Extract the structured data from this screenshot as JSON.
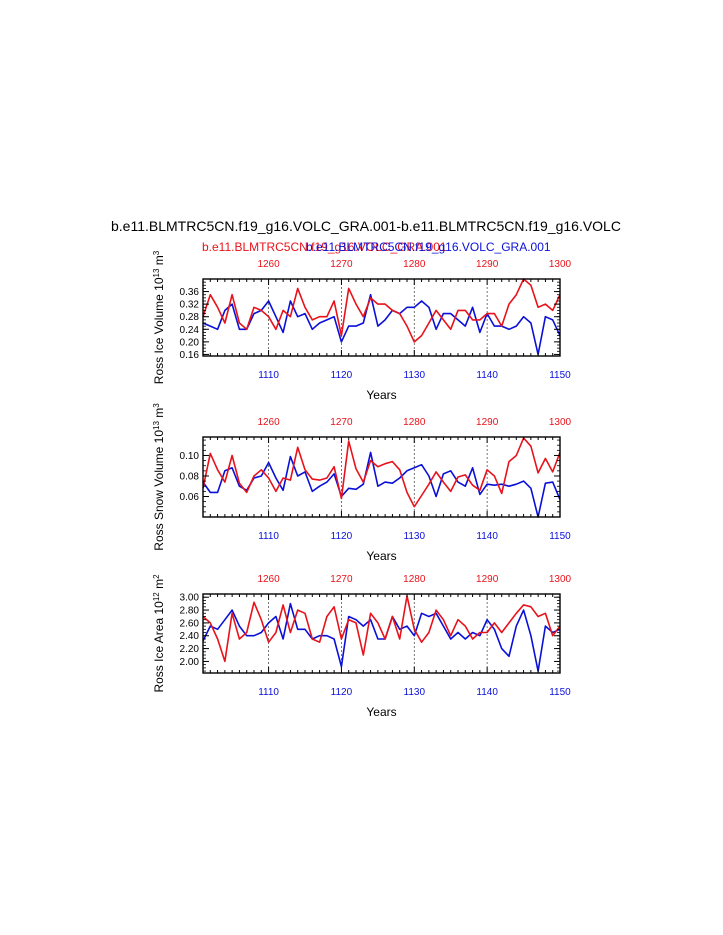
{
  "title": "b.e11.BLMTRC5CN.f19_g16.VOLC_GRA.001-b.e11.BLMTRC5CN.f19_g16.VOLC",
  "subtitle_red": "b.e11.BLMTRC5CN.f19_g16.VOLC_GRA.001",
  "subtitle_blue": "b.e11.BLMTRC5CN.f19_g16.VOLC_GRA.001",
  "colors": {
    "red_series": "#e8121a",
    "blue_series": "#0a10d8",
    "axis": "#000000"
  },
  "chart_data": [
    {
      "type": "line",
      "ylabel": "Ross Ice Volume 10^13 m^3",
      "ylabel_main": "Ross Ice Volume 10",
      "ylabel_exp": "13",
      "ylabel_unit": "m",
      "ylabel_unit_exp": "3",
      "xlabel": "Years",
      "xlim_bottom": [
        1101,
        1150
      ],
      "xlim_top": [
        1251,
        1300
      ],
      "ylim": [
        0.155,
        0.4
      ],
      "yticks": [
        0.16,
        0.2,
        0.24,
        0.28,
        0.32,
        0.36
      ],
      "ytick_labels": [
        "0.16",
        "0.20",
        "0.24",
        "0.28",
        "0.32",
        "0.36"
      ],
      "grid": "dashed vertical lines at 1110/1260, 1120/1270, 1130/1280, 1140/1290",
      "series": [
        {
          "axis": "bottom",
          "color": "blue",
          "x": [
            1101,
            1102,
            1103,
            1104,
            1105,
            1106,
            1107,
            1108,
            1109,
            1110,
            1111,
            1112,
            1113,
            1114,
            1115,
            1116,
            1117,
            1118,
            1119,
            1120,
            1121,
            1122,
            1123,
            1124,
            1125,
            1126,
            1127,
            1128,
            1129,
            1130,
            1131,
            1132,
            1133,
            1134,
            1135,
            1136,
            1137,
            1138,
            1139,
            1140,
            1141,
            1142,
            1143,
            1144,
            1145,
            1146,
            1147,
            1148,
            1149,
            1150
          ],
          "values": [
            0.26,
            0.25,
            0.24,
            0.3,
            0.32,
            0.24,
            0.24,
            0.29,
            0.3,
            0.33,
            0.28,
            0.23,
            0.33,
            0.28,
            0.29,
            0.24,
            0.26,
            0.27,
            0.28,
            0.2,
            0.25,
            0.25,
            0.26,
            0.35,
            0.25,
            0.27,
            0.3,
            0.29,
            0.31,
            0.31,
            0.33,
            0.31,
            0.24,
            0.29,
            0.29,
            0.27,
            0.25,
            0.31,
            0.23,
            0.29,
            0.25,
            0.25,
            0.24,
            0.25,
            0.28,
            0.26,
            0.16,
            0.28,
            0.27,
            0.22
          ]
        },
        {
          "axis": "top",
          "color": "red",
          "x": [
            1251,
            1252,
            1253,
            1254,
            1255,
            1256,
            1257,
            1258,
            1259,
            1260,
            1261,
            1262,
            1263,
            1264,
            1265,
            1266,
            1267,
            1268,
            1269,
            1270,
            1271,
            1272,
            1273,
            1274,
            1275,
            1276,
            1277,
            1278,
            1279,
            1280,
            1281,
            1282,
            1283,
            1284,
            1285,
            1286,
            1287,
            1288,
            1289,
            1290,
            1291,
            1292,
            1293,
            1294,
            1295,
            1296,
            1297,
            1298,
            1299,
            1300
          ],
          "values": [
            0.28,
            0.35,
            0.31,
            0.26,
            0.35,
            0.26,
            0.24,
            0.31,
            0.3,
            0.28,
            0.24,
            0.3,
            0.28,
            0.37,
            0.31,
            0.27,
            0.28,
            0.28,
            0.33,
            0.22,
            0.37,
            0.32,
            0.28,
            0.34,
            0.32,
            0.32,
            0.3,
            0.29,
            0.25,
            0.2,
            0.22,
            0.26,
            0.3,
            0.27,
            0.24,
            0.3,
            0.3,
            0.27,
            0.27,
            0.29,
            0.29,
            0.25,
            0.32,
            0.35,
            0.4,
            0.38,
            0.31,
            0.32,
            0.3,
            0.35
          ]
        }
      ]
    },
    {
      "type": "line",
      "ylabel": "Ross Snow Volume 10^13 m^3",
      "ylabel_main": "Ross Snow Volume 10",
      "ylabel_exp": "13",
      "ylabel_unit": "m",
      "ylabel_unit_exp": "3",
      "xlabel": "Years",
      "xlim_bottom": [
        1101,
        1150
      ],
      "xlim_top": [
        1251,
        1300
      ],
      "ylim": [
        0.04,
        0.118
      ],
      "yticks": [
        0.06,
        0.08,
        0.1
      ],
      "ytick_labels": [
        "0.06",
        "0.08",
        "0.10"
      ],
      "grid": "dashed vertical lines at 1110/1260, 1120/1270, 1130/1280, 1140/1290",
      "series": [
        {
          "axis": "bottom",
          "color": "blue",
          "x": [
            1101,
            1102,
            1103,
            1104,
            1105,
            1106,
            1107,
            1108,
            1109,
            1110,
            1111,
            1112,
            1113,
            1114,
            1115,
            1116,
            1117,
            1118,
            1119,
            1120,
            1121,
            1122,
            1123,
            1124,
            1125,
            1126,
            1127,
            1128,
            1129,
            1130,
            1131,
            1132,
            1133,
            1134,
            1135,
            1136,
            1137,
            1138,
            1139,
            1140,
            1141,
            1142,
            1143,
            1144,
            1145,
            1146,
            1147,
            1148,
            1149,
            1150
          ],
          "values": [
            0.074,
            0.064,
            0.064,
            0.085,
            0.088,
            0.07,
            0.066,
            0.078,
            0.08,
            0.093,
            0.078,
            0.066,
            0.099,
            0.08,
            0.084,
            0.065,
            0.07,
            0.074,
            0.082,
            0.06,
            0.068,
            0.067,
            0.072,
            0.103,
            0.07,
            0.074,
            0.073,
            0.078,
            0.085,
            0.088,
            0.091,
            0.08,
            0.06,
            0.082,
            0.085,
            0.074,
            0.07,
            0.088,
            0.062,
            0.072,
            0.071,
            0.072,
            0.07,
            0.072,
            0.075,
            0.068,
            0.04,
            0.073,
            0.074,
            0.057
          ]
        },
        {
          "axis": "top",
          "color": "red",
          "x": [
            1251,
            1252,
            1253,
            1254,
            1255,
            1256,
            1257,
            1258,
            1259,
            1260,
            1261,
            1262,
            1263,
            1264,
            1265,
            1266,
            1267,
            1268,
            1269,
            1270,
            1271,
            1272,
            1273,
            1274,
            1275,
            1276,
            1277,
            1278,
            1279,
            1280,
            1281,
            1282,
            1283,
            1284,
            1285,
            1286,
            1287,
            1288,
            1289,
            1290,
            1291,
            1292,
            1293,
            1294,
            1295,
            1296,
            1297,
            1298,
            1299,
            1300
          ],
          "values": [
            0.068,
            0.102,
            0.086,
            0.074,
            0.1,
            0.073,
            0.064,
            0.08,
            0.086,
            0.078,
            0.065,
            0.078,
            0.076,
            0.108,
            0.086,
            0.077,
            0.076,
            0.078,
            0.089,
            0.058,
            0.114,
            0.087,
            0.074,
            0.095,
            0.089,
            0.092,
            0.094,
            0.086,
            0.064,
            0.05,
            0.061,
            0.072,
            0.084,
            0.074,
            0.065,
            0.079,
            0.081,
            0.071,
            0.066,
            0.086,
            0.08,
            0.063,
            0.094,
            0.1,
            0.117,
            0.109,
            0.083,
            0.097,
            0.084,
            0.103
          ]
        }
      ]
    },
    {
      "type": "line",
      "ylabel": "Ross Ice Area 10^12 m^2",
      "ylabel_main": "Ross Ice Area 10",
      "ylabel_exp": "12",
      "ylabel_unit": "m",
      "ylabel_unit_exp": "2",
      "xlabel": "Years",
      "xlim_bottom": [
        1101,
        1150
      ],
      "xlim_top": [
        1251,
        1300
      ],
      "ylim": [
        1.82,
        3.05
      ],
      "yticks": [
        2.0,
        2.2,
        2.4,
        2.6,
        2.8,
        3.0
      ],
      "ytick_labels": [
        "2.00",
        "2.20",
        "2.40",
        "2.60",
        "2.80",
        "3.00"
      ],
      "grid": "dashed vertical lines at 1110/1260, 1120/1270, 1130/1280, 1140/1290",
      "series": [
        {
          "axis": "bottom",
          "color": "blue",
          "x": [
            1101,
            1102,
            1103,
            1104,
            1105,
            1106,
            1107,
            1108,
            1109,
            1110,
            1111,
            1112,
            1113,
            1114,
            1115,
            1116,
            1117,
            1118,
            1119,
            1120,
            1121,
            1122,
            1123,
            1124,
            1125,
            1126,
            1127,
            1128,
            1129,
            1130,
            1131,
            1132,
            1133,
            1134,
            1135,
            1136,
            1137,
            1138,
            1139,
            1140,
            1141,
            1142,
            1143,
            1144,
            1145,
            1146,
            1147,
            1148,
            1149,
            1150
          ],
          "values": [
            2.32,
            2.55,
            2.5,
            2.65,
            2.8,
            2.55,
            2.4,
            2.4,
            2.45,
            2.6,
            2.7,
            2.35,
            2.9,
            2.5,
            2.5,
            2.35,
            2.4,
            2.4,
            2.35,
            1.92,
            2.7,
            2.65,
            2.55,
            2.65,
            2.35,
            2.35,
            2.7,
            2.5,
            2.55,
            2.4,
            2.75,
            2.7,
            2.75,
            2.55,
            2.35,
            2.45,
            2.35,
            2.45,
            2.4,
            2.65,
            2.5,
            2.2,
            2.08,
            2.55,
            2.8,
            2.4,
            1.85,
            2.55,
            2.45,
            2.5
          ]
        },
        {
          "axis": "top",
          "color": "red",
          "x": [
            1251,
            1252,
            1253,
            1254,
            1255,
            1256,
            1257,
            1258,
            1259,
            1260,
            1261,
            1262,
            1263,
            1264,
            1265,
            1266,
            1267,
            1268,
            1269,
            1270,
            1271,
            1272,
            1273,
            1274,
            1275,
            1276,
            1277,
            1278,
            1279,
            1280,
            1281,
            1282,
            1283,
            1284,
            1285,
            1286,
            1287,
            1288,
            1289,
            1290,
            1291,
            1292,
            1293,
            1294,
            1295,
            1296,
            1297,
            1298,
            1299,
            1300
          ],
          "values": [
            2.7,
            2.6,
            2.35,
            2.0,
            2.75,
            2.35,
            2.45,
            2.92,
            2.65,
            2.3,
            2.45,
            2.88,
            2.45,
            2.8,
            2.75,
            2.35,
            2.3,
            2.7,
            2.85,
            2.35,
            2.65,
            2.6,
            2.1,
            2.75,
            2.6,
            2.35,
            2.7,
            2.35,
            3.02,
            2.5,
            2.3,
            2.45,
            2.8,
            2.65,
            2.4,
            2.65,
            2.55,
            2.35,
            2.45,
            2.45,
            2.6,
            2.45,
            2.6,
            2.75,
            2.88,
            2.85,
            2.7,
            2.75,
            2.4,
            2.55
          ]
        }
      ]
    }
  ]
}
